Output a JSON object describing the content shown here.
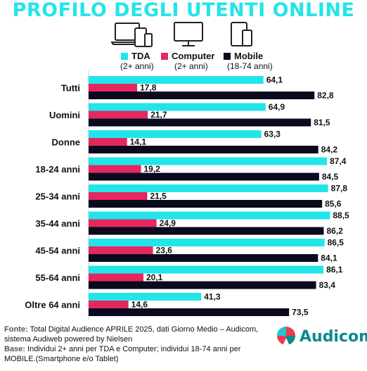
{
  "title": "PROFILO DEGLI UTENTI ONLINE",
  "legend": [
    {
      "name": "TDA",
      "sub": "(2+ anni)",
      "color": "#22e5ea"
    },
    {
      "name": "Computer",
      "sub": "(2+ anni)",
      "color": "#e4275f"
    },
    {
      "name": "Mobile",
      "sub": "(18-74 anni)",
      "color": "#0a0a1e"
    }
  ],
  "chart_data": {
    "type": "bar",
    "orientation": "horizontal",
    "categories": [
      "Tutti",
      "Uomini",
      "Donne",
      "18-24 anni",
      "25-34 anni",
      "35-44 anni",
      "45-54 anni",
      "55-64 anni",
      "Oltre 64 anni"
    ],
    "series": [
      {
        "name": "TDA",
        "values": [
          64.1,
          64.9,
          63.3,
          87.4,
          87.8,
          88.5,
          86.5,
          86.1,
          41.3
        ]
      },
      {
        "name": "Computer",
        "values": [
          17.8,
          21.7,
          14.1,
          19.2,
          21.5,
          24.9,
          23.6,
          20.1,
          14.6
        ]
      },
      {
        "name": "Mobile",
        "values": [
          82.8,
          81.5,
          84.2,
          84.5,
          85.6,
          86.2,
          84.1,
          83.4,
          73.5
        ]
      }
    ],
    "value_labels": [
      [
        "64,1",
        "64,9",
        "63,3",
        "87,4",
        "87,8",
        "88,5",
        "86,5",
        "86,1",
        "41,3"
      ],
      [
        "17,8",
        "21,7",
        "14,1",
        "19,2",
        "21,5",
        "24,9",
        "23,6",
        "20,1",
        "14,6"
      ],
      [
        "82,8",
        "81,5",
        "84,2",
        "84,5",
        "85,6",
        "86,2",
        "84,1",
        "83,4",
        "73,5"
      ]
    ],
    "xlim": [
      0,
      100
    ],
    "grid": false
  },
  "footer": {
    "fonte_label": "Fonte:",
    "fonte_text": " Total Digital Audience APRILE 2025, dati Giorno Medio – Audicom, sistema Audiweb powered by Nielsen",
    "base_label": "Base:",
    "base_text": " Individui 2+ anni per TDA e Computer; individui 18-74 anni per MOBILE.(Smartphone e/o Tablet)"
  },
  "logo": {
    "text": "Audicom"
  }
}
